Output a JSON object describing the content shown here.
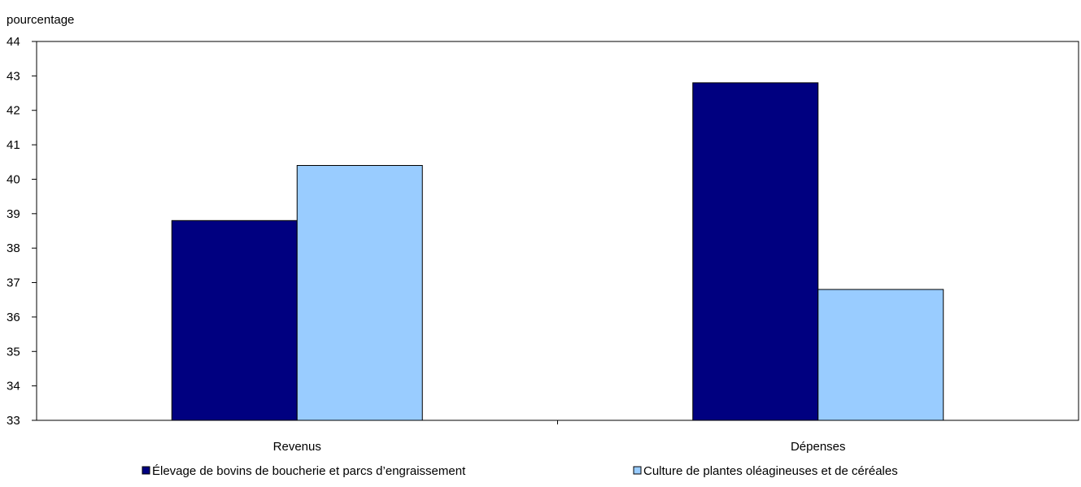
{
  "chart_data": {
    "type": "bar",
    "ylabel": "pourcentage",
    "ylim": [
      33,
      44
    ],
    "yticks": [
      33,
      34,
      35,
      36,
      37,
      38,
      39,
      40,
      41,
      42,
      43,
      44
    ],
    "categories": [
      "Revenus",
      "Dépenses"
    ],
    "series": [
      {
        "name": "Élevage de bovins de boucherie et parcs d’engraissement",
        "values": [
          38.8,
          42.8
        ],
        "color": "#000080"
      },
      {
        "name": "Culture de plantes oléagineuses et de céréales",
        "values": [
          40.4,
          36.8
        ],
        "color": "#99CCFF"
      }
    ],
    "grid": false,
    "legend_position": "bottom"
  }
}
